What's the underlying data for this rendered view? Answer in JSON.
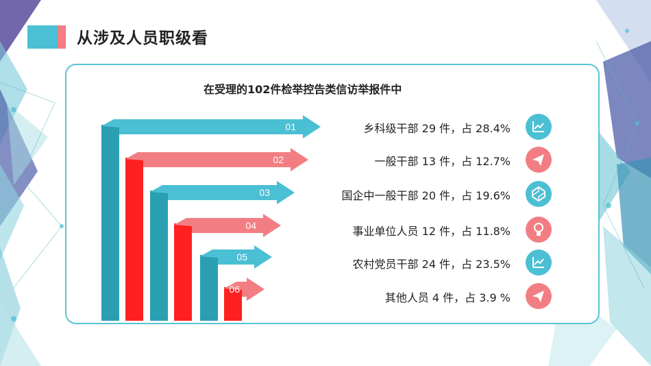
{
  "title": "从涉及人员职级看",
  "subtitle": "在受理的102件检举控告类信访举报件中",
  "colors": {
    "teal": "#4bbfd3",
    "teal_dark": "#2a9fb2",
    "pink": "#f27e83",
    "red": "#ff2020"
  },
  "rows": [
    {
      "num": "01",
      "label": "乡科级干部 29 件，占 28.4%",
      "icon": "chart-trend-icon",
      "color": "teal"
    },
    {
      "num": "02",
      "label": "一般干部 13 件，占 12.7%",
      "icon": "paper-plane-icon",
      "color": "pink"
    },
    {
      "num": "03",
      "label": "国企中一般干部 20 件，占 19.6%",
      "icon": "codepen-icon",
      "color": "teal"
    },
    {
      "num": "04",
      "label": "事业单位人员 12 件，占 11.8%",
      "icon": "lightbulb-icon",
      "color": "pink"
    },
    {
      "num": "05",
      "label": "农村党员干部 24 件，占 23.5%",
      "icon": "chart-trend-icon",
      "color": "teal"
    },
    {
      "num": "06",
      "label": "其他人员 4 件，占  3.9 %",
      "icon": "paper-plane-icon",
      "color": "pink"
    }
  ]
}
